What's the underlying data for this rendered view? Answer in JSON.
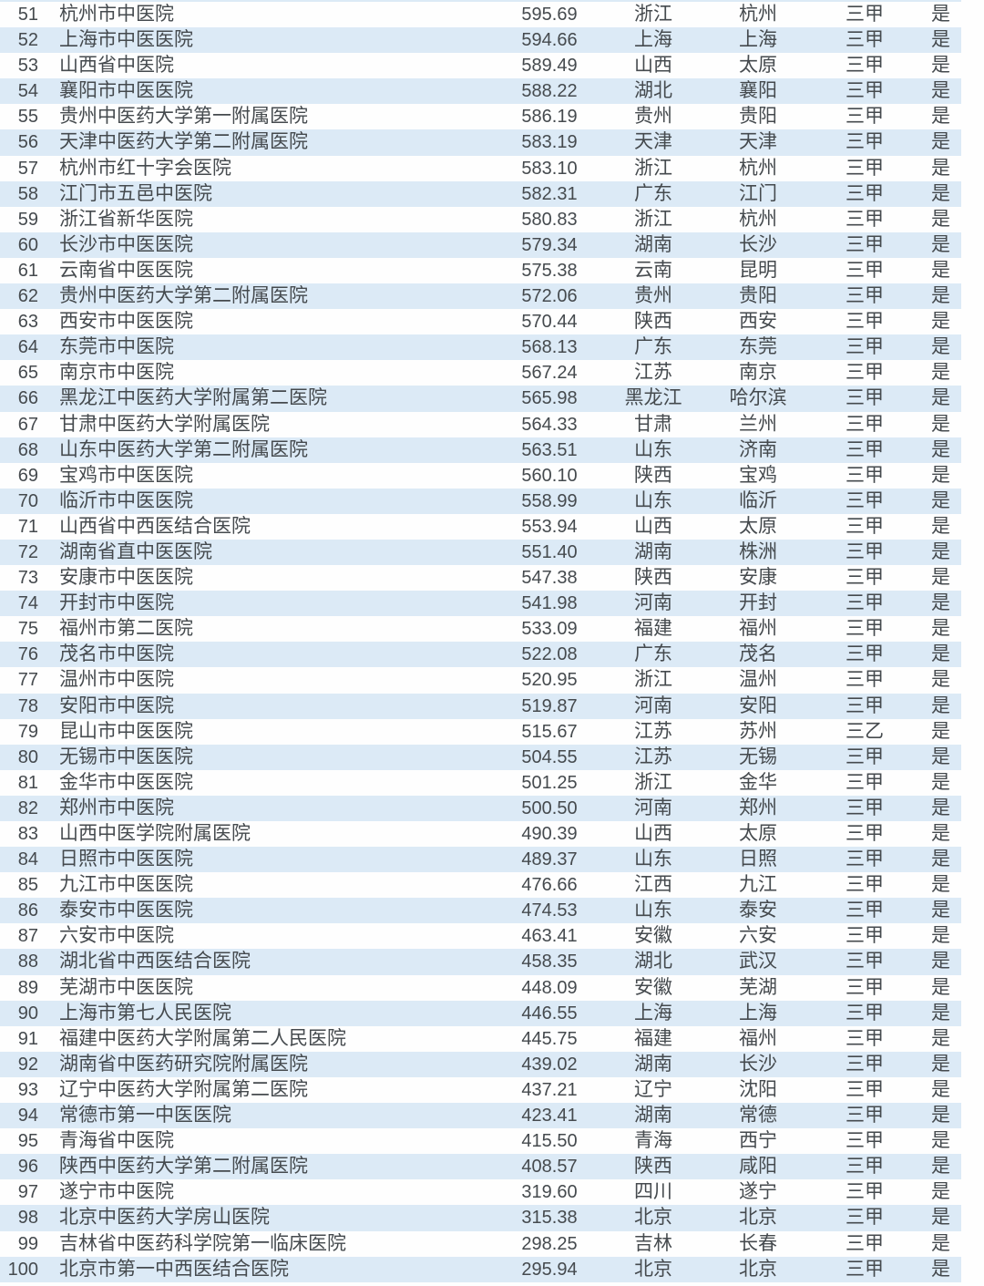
{
  "colors": {
    "row_stripe_blue": "#dceaf6",
    "row_plain": "#fefefe",
    "text": "#454a4e"
  },
  "table": {
    "description_fields": [
      "rank",
      "name",
      "score",
      "province",
      "city",
      "grade",
      "flag"
    ],
    "rows": [
      {
        "rank": "51",
        "name": "杭州市中医院",
        "score": "595.69",
        "province": "浙江",
        "city": "杭州",
        "grade": "三甲",
        "flag": "是"
      },
      {
        "rank": "52",
        "name": "上海市中医医院",
        "score": "594.66",
        "province": "上海",
        "city": "上海",
        "grade": "三甲",
        "flag": "是"
      },
      {
        "rank": "53",
        "name": "山西省中医院",
        "score": "589.49",
        "province": "山西",
        "city": "太原",
        "grade": "三甲",
        "flag": "是"
      },
      {
        "rank": "54",
        "name": "襄阳市中医医院",
        "score": "588.22",
        "province": "湖北",
        "city": "襄阳",
        "grade": "三甲",
        "flag": "是"
      },
      {
        "rank": "55",
        "name": "贵州中医药大学第一附属医院",
        "score": "586.19",
        "province": "贵州",
        "city": "贵阳",
        "grade": "三甲",
        "flag": "是"
      },
      {
        "rank": "56",
        "name": "天津中医药大学第二附属医院",
        "score": "583.19",
        "province": "天津",
        "city": "天津",
        "grade": "三甲",
        "flag": "是"
      },
      {
        "rank": "57",
        "name": "杭州市红十字会医院",
        "score": "583.10",
        "province": "浙江",
        "city": "杭州",
        "grade": "三甲",
        "flag": "是"
      },
      {
        "rank": "58",
        "name": "江门市五邑中医院",
        "score": "582.31",
        "province": "广东",
        "city": "江门",
        "grade": "三甲",
        "flag": "是"
      },
      {
        "rank": "59",
        "name": "浙江省新华医院",
        "score": "580.83",
        "province": "浙江",
        "city": "杭州",
        "grade": "三甲",
        "flag": "是"
      },
      {
        "rank": "60",
        "name": "长沙市中医医院",
        "score": "579.34",
        "province": "湖南",
        "city": "长沙",
        "grade": "三甲",
        "flag": "是"
      },
      {
        "rank": "61",
        "name": "云南省中医医院",
        "score": "575.38",
        "province": "云南",
        "city": "昆明",
        "grade": "三甲",
        "flag": "是"
      },
      {
        "rank": "62",
        "name": "贵州中医药大学第二附属医院",
        "score": "572.06",
        "province": "贵州",
        "city": "贵阳",
        "grade": "三甲",
        "flag": "是"
      },
      {
        "rank": "63",
        "name": "西安市中医医院",
        "score": "570.44",
        "province": "陕西",
        "city": "西安",
        "grade": "三甲",
        "flag": "是"
      },
      {
        "rank": "64",
        "name": "东莞市中医院",
        "score": "568.13",
        "province": "广东",
        "city": "东莞",
        "grade": "三甲",
        "flag": "是"
      },
      {
        "rank": "65",
        "name": "南京市中医院",
        "score": "567.24",
        "province": "江苏",
        "city": "南京",
        "grade": "三甲",
        "flag": "是"
      },
      {
        "rank": "66",
        "name": "黑龙江中医药大学附属第二医院",
        "score": "565.98",
        "province": "黑龙江",
        "city": "哈尔滨",
        "grade": "三甲",
        "flag": "是"
      },
      {
        "rank": "67",
        "name": "甘肃中医药大学附属医院",
        "score": "564.33",
        "province": "甘肃",
        "city": "兰州",
        "grade": "三甲",
        "flag": "是"
      },
      {
        "rank": "68",
        "name": "山东中医药大学第二附属医院",
        "score": "563.51",
        "province": "山东",
        "city": "济南",
        "grade": "三甲",
        "flag": "是"
      },
      {
        "rank": "69",
        "name": "宝鸡市中医医院",
        "score": "560.10",
        "province": "陕西",
        "city": "宝鸡",
        "grade": "三甲",
        "flag": "是"
      },
      {
        "rank": "70",
        "name": "临沂市中医医院",
        "score": "558.99",
        "province": "山东",
        "city": "临沂",
        "grade": "三甲",
        "flag": "是"
      },
      {
        "rank": "71",
        "name": "山西省中西医结合医院",
        "score": "553.94",
        "province": "山西",
        "city": "太原",
        "grade": "三甲",
        "flag": "是"
      },
      {
        "rank": "72",
        "name": "湖南省直中医医院",
        "score": "551.40",
        "province": "湖南",
        "city": "株洲",
        "grade": "三甲",
        "flag": "是"
      },
      {
        "rank": "73",
        "name": "安康市中医医院",
        "score": "547.38",
        "province": "陕西",
        "city": "安康",
        "grade": "三甲",
        "flag": "是"
      },
      {
        "rank": "74",
        "name": "开封市中医院",
        "score": "541.98",
        "province": "河南",
        "city": "开封",
        "grade": "三甲",
        "flag": "是"
      },
      {
        "rank": "75",
        "name": "福州市第二医院",
        "score": "533.09",
        "province": "福建",
        "city": "福州",
        "grade": "三甲",
        "flag": "是"
      },
      {
        "rank": "76",
        "name": "茂名市中医院",
        "score": "522.08",
        "province": "广东",
        "city": "茂名",
        "grade": "三甲",
        "flag": "是"
      },
      {
        "rank": "77",
        "name": "温州市中医院",
        "score": "520.95",
        "province": "浙江",
        "city": "温州",
        "grade": "三甲",
        "flag": "是"
      },
      {
        "rank": "78",
        "name": "安阳市中医院",
        "score": "519.87",
        "province": "河南",
        "city": "安阳",
        "grade": "三甲",
        "flag": "是"
      },
      {
        "rank": "79",
        "name": "昆山市中医医院",
        "score": "515.67",
        "province": "江苏",
        "city": "苏州",
        "grade": "三乙",
        "flag": "是"
      },
      {
        "rank": "80",
        "name": "无锡市中医医院",
        "score": "504.55",
        "province": "江苏",
        "city": "无锡",
        "grade": "三甲",
        "flag": "是"
      },
      {
        "rank": "81",
        "name": "金华市中医医院",
        "score": "501.25",
        "province": "浙江",
        "city": "金华",
        "grade": "三甲",
        "flag": "是"
      },
      {
        "rank": "82",
        "name": "郑州市中医院",
        "score": "500.50",
        "province": "河南",
        "city": "郑州",
        "grade": "三甲",
        "flag": "是"
      },
      {
        "rank": "83",
        "name": "山西中医学院附属医院",
        "score": "490.39",
        "province": "山西",
        "city": "太原",
        "grade": "三甲",
        "flag": "是"
      },
      {
        "rank": "84",
        "name": "日照市中医医院",
        "score": "489.37",
        "province": "山东",
        "city": "日照",
        "grade": "三甲",
        "flag": "是"
      },
      {
        "rank": "85",
        "name": "九江市中医医院",
        "score": "476.66",
        "province": "江西",
        "city": "九江",
        "grade": "三甲",
        "flag": "是"
      },
      {
        "rank": "86",
        "name": "泰安市中医医院",
        "score": "474.53",
        "province": "山东",
        "city": "泰安",
        "grade": "三甲",
        "flag": "是"
      },
      {
        "rank": "87",
        "name": "六安市中医院",
        "score": "463.41",
        "province": "安徽",
        "city": "六安",
        "grade": "三甲",
        "flag": "是"
      },
      {
        "rank": "88",
        "name": "湖北省中西医结合医院",
        "score": "458.35",
        "province": "湖北",
        "city": "武汉",
        "grade": "三甲",
        "flag": "是"
      },
      {
        "rank": "89",
        "name": "芜湖市中医医院",
        "score": "448.09",
        "province": "安徽",
        "city": "芜湖",
        "grade": "三甲",
        "flag": "是"
      },
      {
        "rank": "90",
        "name": "上海市第七人民医院",
        "score": "446.55",
        "province": "上海",
        "city": "上海",
        "grade": "三甲",
        "flag": "是"
      },
      {
        "rank": "91",
        "name": "福建中医药大学附属第二人民医院",
        "score": "445.75",
        "province": "福建",
        "city": "福州",
        "grade": "三甲",
        "flag": "是"
      },
      {
        "rank": "92",
        "name": "湖南省中医药研究院附属医院",
        "score": "439.02",
        "province": "湖南",
        "city": "长沙",
        "grade": "三甲",
        "flag": "是"
      },
      {
        "rank": "93",
        "name": "辽宁中医药大学附属第二医院",
        "score": "437.21",
        "province": "辽宁",
        "city": "沈阳",
        "grade": "三甲",
        "flag": "是"
      },
      {
        "rank": "94",
        "name": "常德市第一中医医院",
        "score": "423.41",
        "province": "湖南",
        "city": "常德",
        "grade": "三甲",
        "flag": "是"
      },
      {
        "rank": "95",
        "name": "青海省中医院",
        "score": "415.50",
        "province": "青海",
        "city": "西宁",
        "grade": "三甲",
        "flag": "是"
      },
      {
        "rank": "96",
        "name": "陕西中医药大学第二附属医院",
        "score": "408.57",
        "province": "陕西",
        "city": "咸阳",
        "grade": "三甲",
        "flag": "是"
      },
      {
        "rank": "97",
        "name": "遂宁市中医院",
        "score": "319.60",
        "province": "四川",
        "city": "遂宁",
        "grade": "三甲",
        "flag": "是"
      },
      {
        "rank": "98",
        "name": "北京中医药大学房山医院",
        "score": "315.38",
        "province": "北京",
        "city": "北京",
        "grade": "三甲",
        "flag": "是"
      },
      {
        "rank": "99",
        "name": "吉林省中医药科学院第一临床医院",
        "score": "298.25",
        "province": "吉林",
        "city": "长春",
        "grade": "三甲",
        "flag": "是"
      },
      {
        "rank": "100",
        "name": "北京市第一中西医结合医院",
        "score": "295.94",
        "province": "北京",
        "city": "北京",
        "grade": "三甲",
        "flag": "是"
      }
    ]
  }
}
